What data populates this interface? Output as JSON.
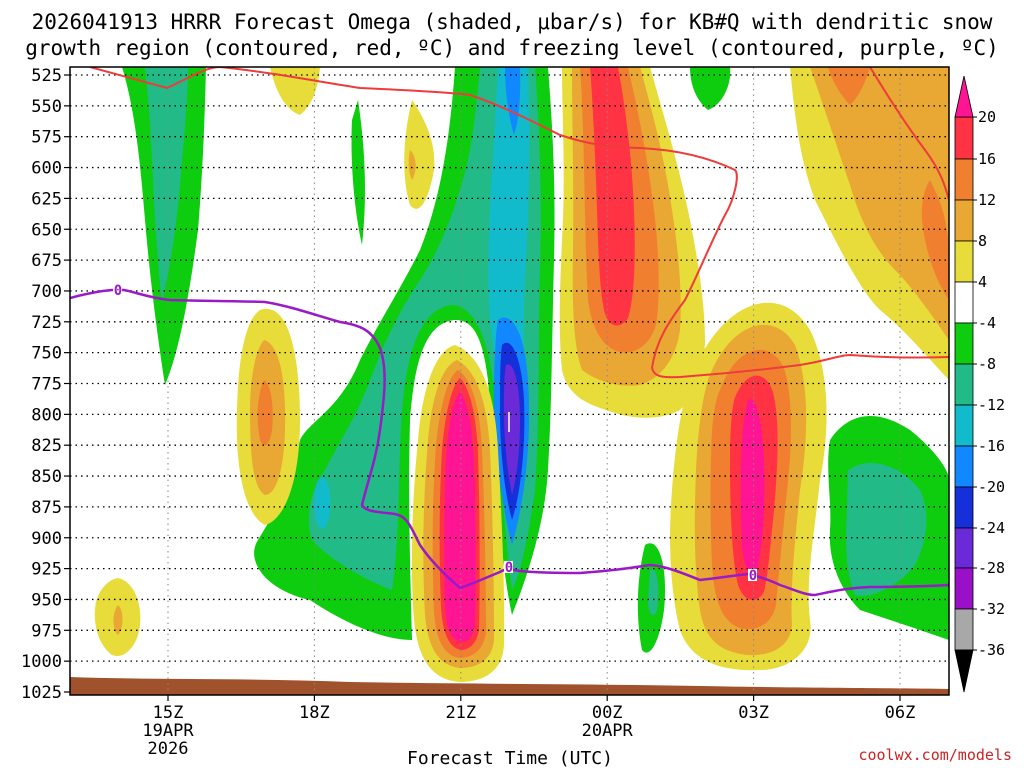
{
  "chart_data": {
    "type": "contour",
    "title_lines": [
      "2026041913 HRRR Forecast Omega (shaded, μbar/s) for KB#Q with dendritic snow",
      "growth region (contoured, red, ºC) and freezing level (contoured, purple, ºC)"
    ],
    "xlabel": "Forecast Time (UTC)",
    "credit": "coolwx.com/models",
    "x_ticks": [
      {
        "hour": 15,
        "label": "15Z",
        "sub": [
          "19APR",
          "2026"
        ]
      },
      {
        "hour": 18,
        "label": "18Z",
        "sub": []
      },
      {
        "hour": 21,
        "label": "21Z",
        "sub": []
      },
      {
        "hour": 24,
        "label": "00Z",
        "sub": [
          "20APR"
        ]
      },
      {
        "hour": 27,
        "label": "03Z",
        "sub": []
      },
      {
        "hour": 30,
        "label": "06Z",
        "sub": []
      }
    ],
    "xlim_hours": [
      13,
      31
    ],
    "y_levels_hpa": [
      525,
      550,
      575,
      600,
      625,
      650,
      675,
      700,
      725,
      750,
      775,
      800,
      825,
      850,
      875,
      900,
      925,
      950,
      975,
      1000,
      1025
    ],
    "ylim_hpa": [
      520,
      1025
    ],
    "colorbar": {
      "labels": [
        "20",
        "16",
        "12",
        "8",
        "4",
        "-4",
        "-8",
        "-12",
        "-16",
        "-20",
        "-24",
        "-28",
        "-32",
        "-36"
      ],
      "colors": {
        "gt20": "#ff1493",
        "16_20": "#ff3344",
        "12_16": "#f08030",
        "8_12": "#e8a833",
        "4_8": "#e8dc3a",
        "m4_4": "#ffffff",
        "m8_m4": "#0ecc0e",
        "m12_m8": "#22bb88",
        "m16_m12": "#11bbcc",
        "m20_m16": "#1188ff",
        "m24_m20": "#1530d8",
        "m28_m24": "#6a2ad8",
        "m32_m28": "#9a10c8",
        "m36_m32": "#a8a8a8",
        "lt36": "#000000"
      }
    },
    "contours": [
      {
        "name": "dendritic snow growth region",
        "color": "#ee3b3b"
      },
      {
        "name": "freezing level",
        "color": "#9a1ac8",
        "label": "0"
      }
    ],
    "ground_color": "#a0522d"
  }
}
